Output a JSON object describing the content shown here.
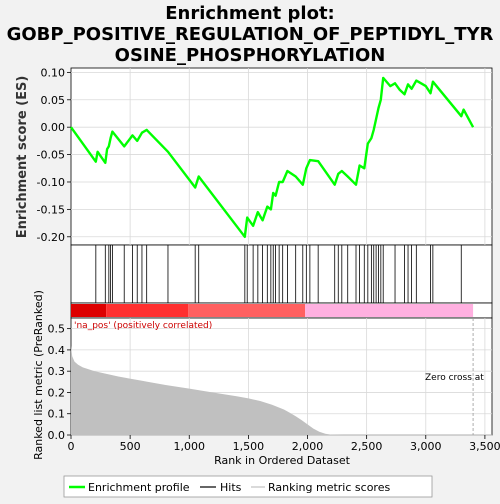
{
  "chart_data": {
    "type": "line",
    "title": "Enrichment plot:\nGOBP_POSITIVE_REGULATION_OF_PEPTIDYL_TYR\nOSINE_PHOSPHORYLATION",
    "title_lines": [
      "Enrichment plot:",
      "GOBP_POSITIVE_REGULATION_OF_PEPTIDYL_TYR",
      "OSINE_PHOSPHORYLATION"
    ],
    "es_panel": {
      "ylabel": "Enrichment score (ES)",
      "yticks": [
        0.1,
        0.05,
        0.0,
        -0.05,
        -0.1,
        -0.15,
        -0.2
      ],
      "ytick_labels": [
        "0.10",
        "0.05",
        "0.00",
        "-0.05",
        "-0.10",
        "-0.15",
        "-0.20"
      ],
      "ylim": [
        -0.215,
        0.108
      ],
      "grid": true,
      "line_color": "#00ff00",
      "series": [
        {
          "name": "Enrichment profile",
          "x": [
            0,
            210,
            225,
            290,
            305,
            320,
            335,
            350,
            450,
            520,
            560,
            600,
            640,
            820,
            1050,
            1080,
            1470,
            1490,
            1540,
            1580,
            1620,
            1660,
            1690,
            1710,
            1730,
            1760,
            1790,
            1830,
            1900,
            1960,
            1990,
            2020,
            2090,
            2230,
            2260,
            2290,
            2340,
            2410,
            2440,
            2480,
            2510,
            2540,
            2560,
            2580,
            2600,
            2620,
            2640,
            2700,
            2740,
            2780,
            2820,
            2850,
            2880,
            2920,
            3000,
            3040,
            3060,
            3300,
            3320,
            3400
          ],
          "y": [
            0.0,
            -0.063,
            -0.045,
            -0.065,
            -0.04,
            -0.035,
            -0.02,
            -0.008,
            -0.035,
            -0.015,
            -0.025,
            -0.01,
            -0.005,
            -0.045,
            -0.11,
            -0.09,
            -0.2,
            -0.165,
            -0.18,
            -0.155,
            -0.17,
            -0.145,
            -0.15,
            -0.12,
            -0.125,
            -0.1,
            -0.1,
            -0.08,
            -0.09,
            -0.105,
            -0.075,
            -0.06,
            -0.062,
            -0.105,
            -0.085,
            -0.08,
            -0.09,
            -0.105,
            -0.07,
            -0.075,
            -0.03,
            -0.02,
            -0.005,
            0.015,
            0.035,
            0.05,
            0.09,
            0.075,
            0.08,
            0.068,
            0.06,
            0.078,
            0.07,
            0.085,
            0.075,
            0.062,
            0.083,
            0.02,
            0.032,
            0.0
          ]
        }
      ]
    },
    "hits_panel": {
      "name": "Hits",
      "hits": [
        210,
        290,
        320,
        335,
        350,
        450,
        520,
        560,
        600,
        640,
        820,
        1050,
        1080,
        1470,
        1490,
        1540,
        1580,
        1620,
        1660,
        1690,
        1710,
        1730,
        1760,
        1790,
        1830,
        1900,
        1960,
        1990,
        2020,
        2090,
        2230,
        2260,
        2290,
        2340,
        2410,
        2440,
        2480,
        2510,
        2540,
        2560,
        2580,
        2600,
        2620,
        2640,
        2740,
        2820,
        2850,
        2880,
        2920,
        3040,
        3060,
        3300
      ]
    },
    "ranking_panel": {
      "ylabel": "Ranked list metric (PreRanked)",
      "xlabel": "Rank in Ordered Dataset",
      "yticks": [
        0.0,
        0.1,
        0.2,
        0.3,
        0.4,
        0.5
      ],
      "ytick_labels": [
        "0.0",
        "0.1",
        "0.2",
        "0.3",
        "0.4",
        "0.5"
      ],
      "ylim": [
        0,
        0.55
      ],
      "xticks": [
        0,
        500,
        1000,
        1500,
        2000,
        2500,
        3000,
        3500
      ],
      "xtick_labels": [
        "0",
        "500",
        "1,000",
        "1,500",
        "2,000",
        "2,500",
        "3,000",
        "3,500"
      ],
      "xlim": [
        0,
        3560
      ],
      "annotation_positive": "'na_pos' (positively correlated)",
      "annotation_zero_cross": "Zero cross at",
      "zero_cross": 3400,
      "fill_color": "#c0c0c0",
      "series": [
        {
          "name": "Ranking metric scores",
          "x": [
            0,
            10,
            30,
            60,
            100,
            200,
            400,
            600,
            800,
            1000,
            1200,
            1400,
            1500,
            1600,
            1700,
            1800,
            1850,
            1900,
            1950,
            2000,
            2050,
            2100,
            2150,
            2200,
            2300,
            2500,
            3000,
            3400
          ],
          "y": [
            0.42,
            0.37,
            0.345,
            0.33,
            0.318,
            0.3,
            0.275,
            0.255,
            0.235,
            0.218,
            0.2,
            0.182,
            0.172,
            0.16,
            0.142,
            0.12,
            0.105,
            0.088,
            0.07,
            0.05,
            0.03,
            0.015,
            0.006,
            0.002,
            0.0,
            0.0,
            0.0,
            0.0
          ]
        }
      ]
    },
    "legend": {
      "position": "bottom",
      "entries": [
        {
          "label": "Enrichment profile",
          "color": "#00ff00"
        },
        {
          "label": "Hits",
          "color": "#000000"
        },
        {
          "label": "Ranking metric scores",
          "color": "#c0c0c0"
        }
      ]
    },
    "colorbar": {
      "colors_left": [
        "#dd0000",
        "#ff3030",
        "#ff6060"
      ],
      "color_right": "#ffb0e0",
      "split": 1980,
      "end": 3400
    }
  }
}
